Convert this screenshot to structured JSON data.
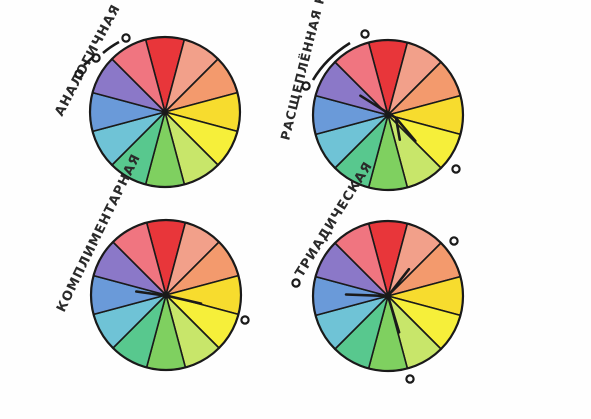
{
  "labels": {
    "analogous": "АНАЛОГИЧНАЯ",
    "split_complementary": "РАСЩЕПЛЁННАЯ КОМПЛИМЕНТАРНАЯ",
    "complementary": "КОМПЛИМЕНТАРНАЯ",
    "triadic": "ТРИАДИЧЕСКАЯ"
  },
  "palette": {
    "segments": [
      "#e8363a",
      "#f2a08a",
      "#f39a6d",
      "#f7dc2e",
      "#f6ef3a",
      "#c8e66a",
      "#7fd060",
      "#58c88e",
      "#6fc3d6",
      "#6a9ad9",
      "#8b78c8",
      "#f07580"
    ],
    "ink": "#1a1a1a",
    "paper": "#fefefe"
  },
  "wheels": [
    {
      "id": "analogous",
      "marks": "three circles"
    },
    {
      "id": "split-complementary",
      "marks": "three circles"
    },
    {
      "id": "complementary",
      "marks": "two circles"
    },
    {
      "id": "triadic",
      "marks": "three circles"
    }
  ]
}
